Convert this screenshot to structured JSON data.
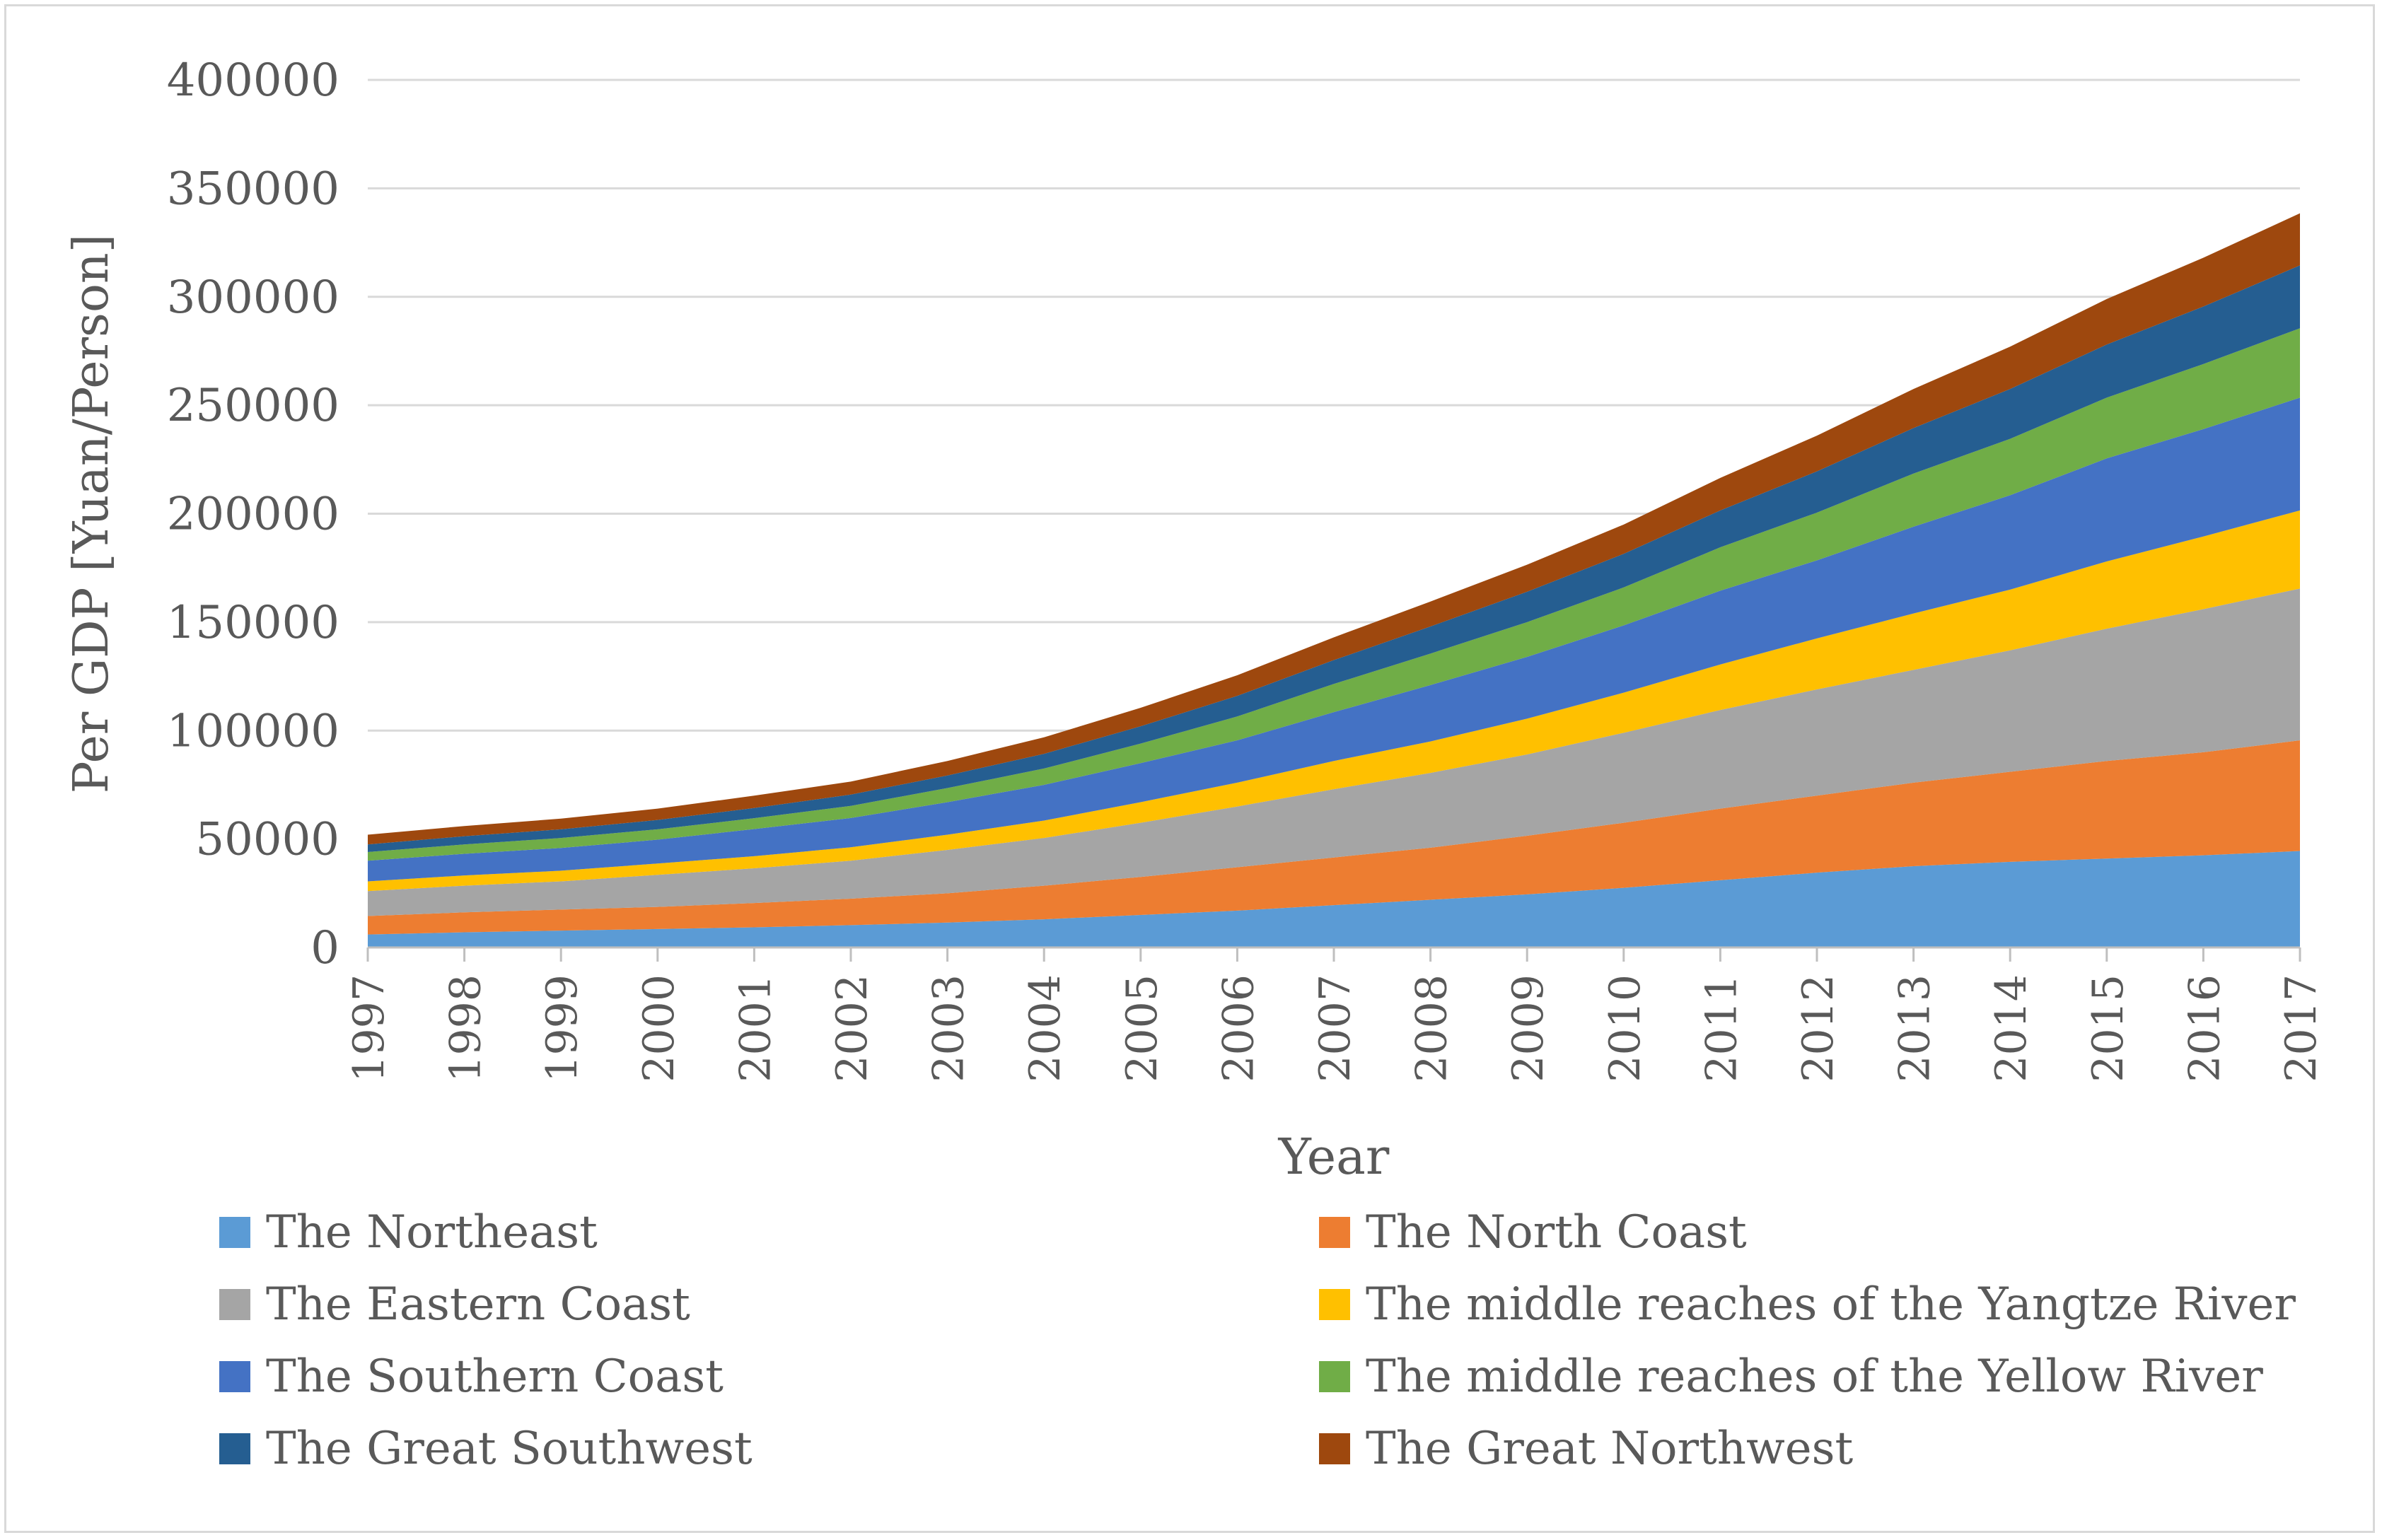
{
  "chart_data": {
    "type": "area",
    "stacked": true,
    "title": "",
    "xlabel": "Year",
    "ylabel": "Per GDP [Yuan/Person]",
    "ylim": [
      0,
      400000
    ],
    "yticks": [
      0,
      50000,
      100000,
      150000,
      200000,
      250000,
      300000,
      350000,
      400000
    ],
    "grid": "horizontal",
    "legend_position": "bottom",
    "categories": [
      "1997",
      "1998",
      "1999",
      "2000",
      "2001",
      "2002",
      "2003",
      "2004",
      "2005",
      "2006",
      "2007",
      "2008",
      "2009",
      "2010",
      "2011",
      "2012",
      "2013",
      "2014",
      "2015",
      "2016",
      "2017"
    ],
    "series": [
      {
        "name": "The Northeast",
        "color": "#5b9bd5",
        "values": [
          6000,
          7000,
          7800,
          8500,
          9300,
          10300,
          11500,
          13000,
          15000,
          17000,
          19500,
          22000,
          24500,
          27500,
          31000,
          34500,
          37500,
          39500,
          41000,
          42500,
          44500
        ]
      },
      {
        "name": "The North Coast",
        "color": "#ed7d31",
        "values": [
          8500,
          9200,
          9700,
          10200,
          11200,
          12200,
          13500,
          15500,
          17500,
          20000,
          22000,
          24000,
          27000,
          30000,
          33000,
          35500,
          38500,
          41500,
          45000,
          47500,
          51000
        ]
      },
      {
        "name": "The Eastern Coast",
        "color": "#a5a5a5",
        "values": [
          11500,
          12300,
          13000,
          14800,
          16000,
          17500,
          20000,
          22000,
          25000,
          28000,
          31500,
          34500,
          37500,
          41500,
          45500,
          49000,
          52000,
          56000,
          61000,
          66000,
          70000
        ]
      },
      {
        "name": "The middle reaches of the Yangtze River",
        "color": "#ffc000",
        "values": [
          4500,
          4700,
          4900,
          5200,
          5600,
          6200,
          7000,
          8000,
          9500,
          11000,
          13000,
          14500,
          16500,
          18500,
          21000,
          23500,
          26000,
          28000,
          31000,
          33500,
          36000
        ]
      },
      {
        "name": "The Southern Coast",
        "color": "#4472c4",
        "values": [
          9500,
          10000,
          10500,
          11000,
          12500,
          13500,
          15000,
          16500,
          18000,
          19500,
          22500,
          26000,
          28500,
          31000,
          34000,
          36000,
          40000,
          43500,
          47500,
          49500,
          52000
        ]
      },
      {
        "name": "The middle reaches of the Yellow River",
        "color": "#70ad47",
        "values": [
          4000,
          4300,
          4600,
          4800,
          5000,
          5600,
          6500,
          7500,
          9000,
          11000,
          13000,
          14500,
          16000,
          17500,
          20000,
          22000,
          24500,
          26000,
          28000,
          30000,
          32000
        ]
      },
      {
        "name": "The Great Southwest",
        "color": "#255e91",
        "values": [
          3500,
          3800,
          4000,
          4300,
          4700,
          5200,
          5800,
          6800,
          8000,
          9500,
          11000,
          12500,
          14000,
          15500,
          17000,
          19000,
          21000,
          23000,
          24500,
          26500,
          29000
        ]
      },
      {
        "name": "The Great Northwest",
        "color": "#9e480e",
        "values": [
          4500,
          4700,
          4900,
          5200,
          5700,
          6000,
          6700,
          7600,
          8500,
          9500,
          10500,
          11500,
          12500,
          13500,
          15000,
          16500,
          18000,
          19500,
          21000,
          22500,
          24000
        ]
      }
    ]
  }
}
